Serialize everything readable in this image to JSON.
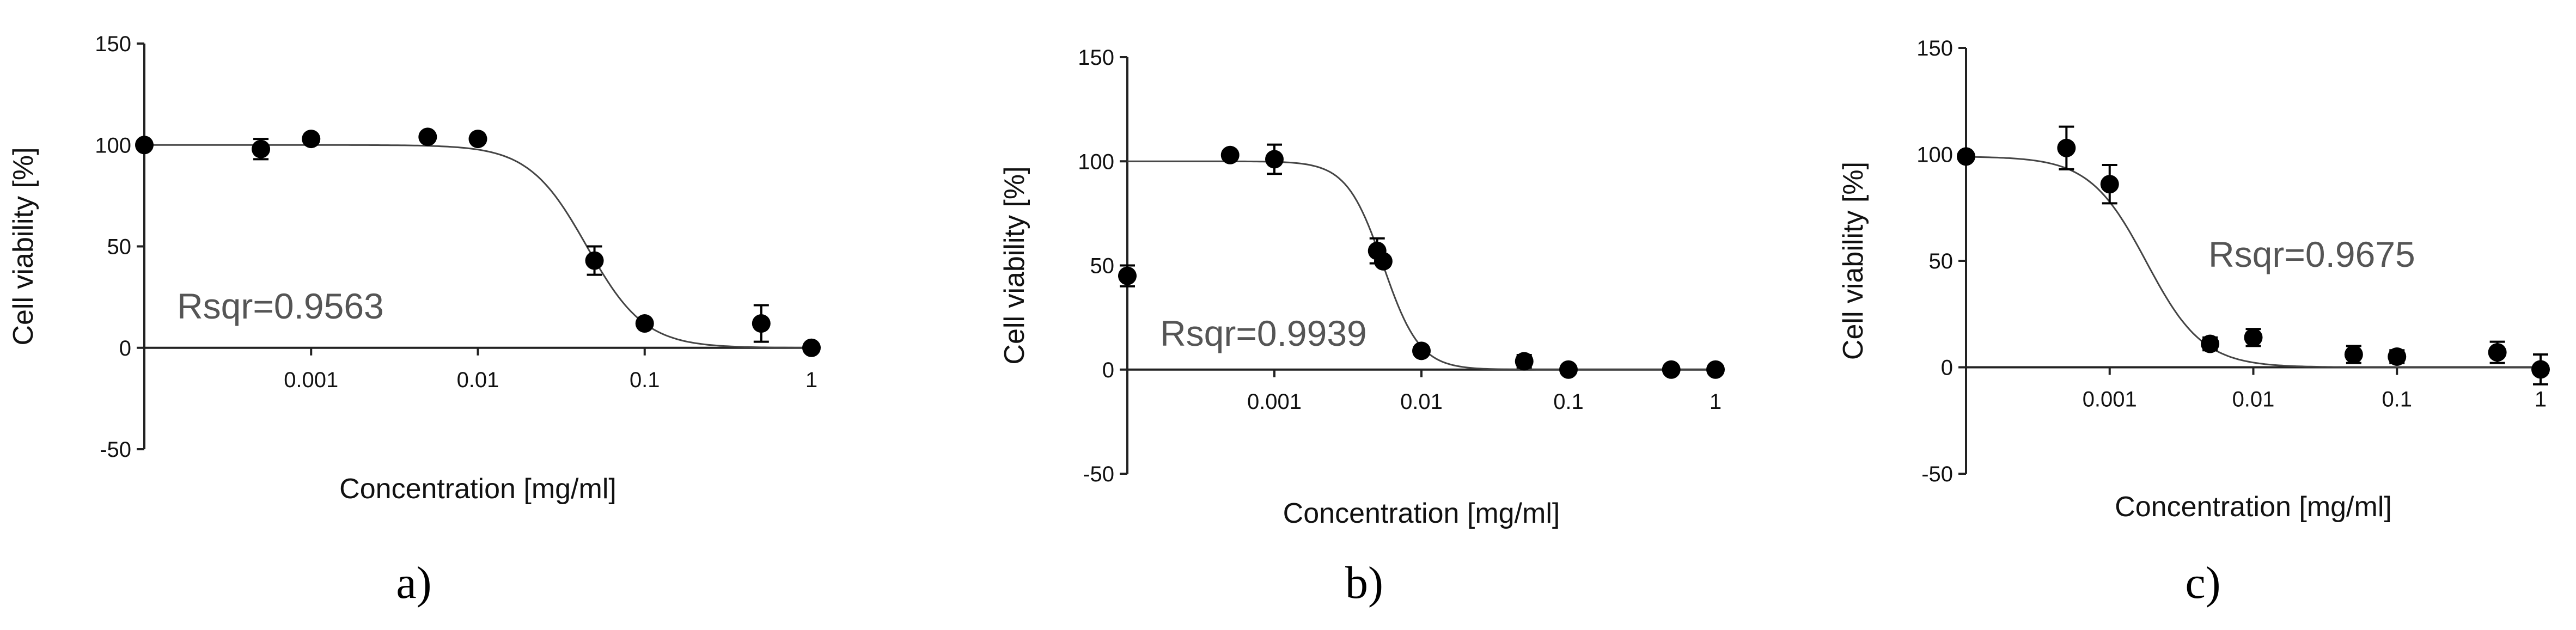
{
  "chart_data": [
    {
      "type": "scatter",
      "panel_label": "a)",
      "xlabel": "Concentration [mg/ml]",
      "ylabel": "Cell viability [%]",
      "x_scale": "log",
      "xlim": [
        0.0001,
        1
      ],
      "ylim": [
        -50,
        150
      ],
      "xticks": [
        {
          "value": 0.001,
          "label": "0.001"
        },
        {
          "value": 0.01,
          "label": "0.01"
        },
        {
          "value": 0.1,
          "label": "0.1"
        },
        {
          "value": 1,
          "label": "1"
        }
      ],
      "yticks": [
        {
          "value": 150,
          "label": "150"
        },
        {
          "value": 100,
          "label": "100"
        },
        {
          "value": 50,
          "label": "50"
        },
        {
          "value": 0,
          "label": "0"
        },
        {
          "value": -50,
          "label": "-50"
        }
      ],
      "annotation": "Rsqr=0.9563",
      "points": [
        {
          "x": 0.0001,
          "y": 100,
          "err": 0
        },
        {
          "x": 0.0005,
          "y": 98,
          "err": 5
        },
        {
          "x": 0.001,
          "y": 103,
          "err": 0
        },
        {
          "x": 0.005,
          "y": 104,
          "err": 0
        },
        {
          "x": 0.01,
          "y": 103,
          "err": 0
        },
        {
          "x": 0.05,
          "y": 43,
          "err": 7
        },
        {
          "x": 0.1,
          "y": 12,
          "err": 0
        },
        {
          "x": 0.5,
          "y": 12,
          "err": 9
        },
        {
          "x": 1,
          "y": 0,
          "err": 0
        }
      ],
      "fit": {
        "top": 100,
        "bottom": 0,
        "ec50": 0.045,
        "hill": 2.5
      }
    },
    {
      "type": "scatter",
      "panel_label": "b)",
      "xlabel": "Concentration [mg/ml]",
      "ylabel": "Cell viability [%]",
      "x_scale": "log",
      "xlim": [
        0.0001,
        1
      ],
      "ylim": [
        -50,
        150
      ],
      "xticks": [
        {
          "value": 0.001,
          "label": "0.001"
        },
        {
          "value": 0.01,
          "label": "0.01"
        },
        {
          "value": 0.1,
          "label": "0.1"
        },
        {
          "value": 1,
          "label": "1"
        }
      ],
      "yticks": [
        {
          "value": 150,
          "label": "150"
        },
        {
          "value": 100,
          "label": "100"
        },
        {
          "value": 50,
          "label": "50"
        },
        {
          "value": 0,
          "label": "0"
        },
        {
          "value": -50,
          "label": "-50"
        }
      ],
      "annotation": "Rsqr=0.9939",
      "points": [
        {
          "x": 0.0001,
          "y": 45,
          "err": 5
        },
        {
          "x": 0.0005,
          "y": 103,
          "err": 0
        },
        {
          "x": 0.001,
          "y": 101,
          "err": 7
        },
        {
          "x": 0.005,
          "y": 57,
          "err": 6
        },
        {
          "x": 0.0055,
          "y": 52,
          "err": 0
        },
        {
          "x": 0.01,
          "y": 9,
          "err": 0
        },
        {
          "x": 0.05,
          "y": 4,
          "err": 3
        },
        {
          "x": 0.1,
          "y": 0,
          "err": 0
        },
        {
          "x": 0.5,
          "y": 0,
          "err": 0
        },
        {
          "x": 1,
          "y": 0,
          "err": 2
        }
      ],
      "fit": {
        "top": 100,
        "bottom": 0,
        "ec50": 0.0055,
        "hill": 3.5
      }
    },
    {
      "type": "scatter",
      "panel_label": "c)",
      "xlabel": "Concentration [mg/ml]",
      "ylabel": "Cell viability [%]",
      "x_scale": "log",
      "xlim": [
        0.0001,
        1
      ],
      "ylim": [
        -50,
        150
      ],
      "xticks": [
        {
          "value": 0.001,
          "label": "0.001"
        },
        {
          "value": 0.01,
          "label": "0.01"
        },
        {
          "value": 0.1,
          "label": "0.1"
        },
        {
          "value": 1,
          "label": "1"
        }
      ],
      "yticks": [
        {
          "value": 150,
          "label": "150"
        },
        {
          "value": 100,
          "label": "100"
        },
        {
          "value": 50,
          "label": "50"
        },
        {
          "value": 0,
          "label": "0"
        },
        {
          "value": -50,
          "label": "-50"
        }
      ],
      "annotation": "Rsqr=0.9675",
      "points": [
        {
          "x": 0.0001,
          "y": 99,
          "err": 0
        },
        {
          "x": 0.0005,
          "y": 103,
          "err": 10
        },
        {
          "x": 0.001,
          "y": 86,
          "err": 9
        },
        {
          "x": 0.005,
          "y": 11,
          "err": 3
        },
        {
          "x": 0.01,
          "y": 14,
          "err": 4
        },
        {
          "x": 0.05,
          "y": 6,
          "err": 4
        },
        {
          "x": 0.1,
          "y": 5,
          "err": 3
        },
        {
          "x": 0.5,
          "y": 7,
          "err": 5
        },
        {
          "x": 1,
          "y": -1,
          "err": 7
        }
      ],
      "fit": {
        "top": 99,
        "bottom": 0,
        "ec50": 0.0018,
        "hill": 2.2
      }
    }
  ]
}
